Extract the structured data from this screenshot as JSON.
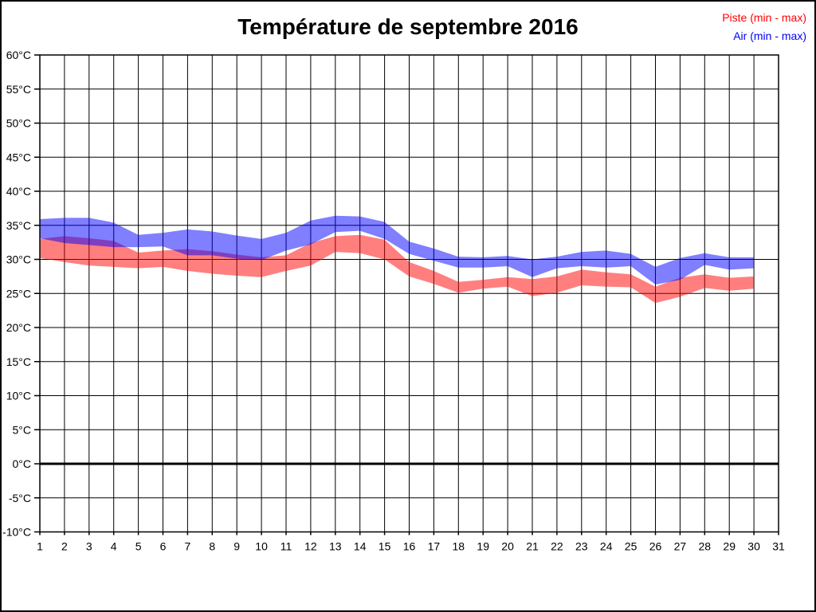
{
  "title": "Température de septembre 2016",
  "legend": [
    {
      "label": "Piste (min - max)",
      "color": "#ff0000"
    },
    {
      "label": "Air (min - max)",
      "color": "#0000ff"
    }
  ],
  "chart_data": {
    "type": "area",
    "title": "Température de septembre 2016",
    "xlabel": "",
    "ylabel": "",
    "x_range": [
      1,
      31
    ],
    "ylim": [
      -10,
      60
    ],
    "grid": true,
    "zero_line": true,
    "legend_position": "top-right-outside",
    "xtick_labels": [
      "1",
      "2",
      "3",
      "4",
      "5",
      "6",
      "7",
      "8",
      "9",
      "10",
      "11",
      "12",
      "13",
      "14",
      "15",
      "16",
      "17",
      "18",
      "19",
      "20",
      "21",
      "22",
      "23",
      "24",
      "25",
      "26",
      "27",
      "28",
      "29",
      "30",
      "31"
    ],
    "ytick_values": [
      60,
      55,
      50,
      45,
      40,
      35,
      30,
      25,
      20,
      15,
      10,
      5,
      0,
      -5,
      -10
    ],
    "ytick_labels": [
      "60°C",
      "55°C",
      "50°C",
      "45°C",
      "40°C",
      "35°C",
      "30°C",
      "25°C",
      "20°C",
      "15°C",
      "10°C",
      "5°C",
      "0°C",
      "-5°C",
      "-10°C"
    ],
    "x": [
      1,
      2,
      3,
      4,
      5,
      6,
      7,
      8,
      9,
      10,
      11,
      12,
      13,
      14,
      15,
      16,
      17,
      18,
      19,
      20,
      21,
      22,
      23,
      24,
      25,
      26,
      27,
      28,
      29,
      30
    ],
    "series": [
      {
        "name": "Piste (min - max)",
        "color": "#ff0000",
        "fill_opacity": 0.5,
        "min": [
          30.2,
          29.6,
          29.1,
          28.9,
          28.7,
          28.9,
          28.3,
          27.9,
          27.6,
          27.4,
          28.3,
          29.1,
          31.1,
          30.9,
          30.0,
          27.5,
          26.4,
          25.1,
          25.7,
          26.0,
          24.6,
          25.1,
          26.2,
          26.0,
          25.9,
          23.6,
          24.5,
          25.8,
          25.4,
          25.7
        ],
        "max": [
          33.0,
          33.4,
          33.1,
          32.7,
          31.0,
          31.3,
          31.5,
          31.2,
          30.7,
          30.3,
          30.6,
          32.4,
          33.4,
          33.6,
          32.9,
          29.6,
          28.3,
          26.7,
          27.0,
          27.4,
          27.1,
          27.5,
          28.5,
          28.1,
          27.8,
          26.0,
          27.3,
          27.8,
          27.3,
          27.5
        ]
      },
      {
        "name": "Air (min - max)",
        "color": "#0000ff",
        "fill_opacity": 0.5,
        "min": [
          33.1,
          32.4,
          32.1,
          31.8,
          31.8,
          31.9,
          30.6,
          30.6,
          30.1,
          29.9,
          31.3,
          32.2,
          34.0,
          34.2,
          33.0,
          30.8,
          29.8,
          28.8,
          28.8,
          29.0,
          27.4,
          28.7,
          29.0,
          28.8,
          29.0,
          26.3,
          27.0,
          29.2,
          28.5,
          28.7
        ],
        "max": [
          35.9,
          36.1,
          36.1,
          35.4,
          33.6,
          33.9,
          34.4,
          34.1,
          33.5,
          33.0,
          33.9,
          35.7,
          36.4,
          36.3,
          35.5,
          32.6,
          31.6,
          30.4,
          30.3,
          30.5,
          30.0,
          30.4,
          31.1,
          31.3,
          30.8,
          28.9,
          30.2,
          30.9,
          30.3,
          30.3
        ]
      }
    ]
  }
}
